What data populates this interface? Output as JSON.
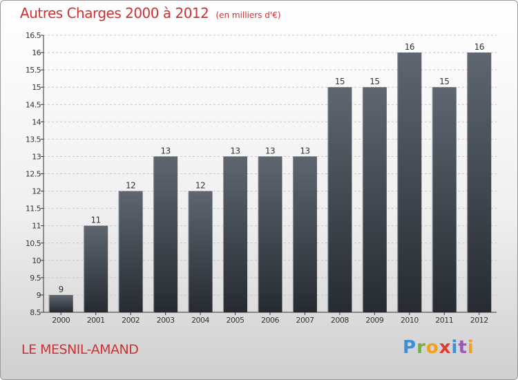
{
  "header": {
    "title": "Autres Charges 2000 à 2012",
    "subtitle": "(en milliers d'€)"
  },
  "footer": {
    "town": "LE MESNIL-AMAND",
    "logo": "Proxiti"
  },
  "colors": {
    "title": "#d03030",
    "bar_top": "#5f6670",
    "bar_bottom": "#262b31",
    "grid": "#c8c8c8"
  },
  "chart_data": {
    "type": "bar",
    "title": "Autres Charges 2000 à 2012",
    "xlabel": "",
    "ylabel": "",
    "ylim": [
      8.5,
      16.5
    ],
    "yticks": [
      8.5,
      9,
      9.5,
      10,
      10.5,
      11,
      11.5,
      12,
      12.5,
      13,
      13.5,
      14,
      14.5,
      15,
      15.5,
      16,
      16.5
    ],
    "grid": true,
    "categories": [
      "2000",
      "2001",
      "2002",
      "2003",
      "2004",
      "2005",
      "2006",
      "2007",
      "2008",
      "2009",
      "2010",
      "2011",
      "2012"
    ],
    "values": [
      9,
      11,
      12,
      13,
      12,
      13,
      13,
      13,
      15,
      15,
      16,
      15,
      16
    ],
    "data_labels": [
      "9",
      "11",
      "12",
      "13",
      "12",
      "13",
      "13",
      "13",
      "15",
      "15",
      "16",
      "15",
      "16"
    ]
  }
}
